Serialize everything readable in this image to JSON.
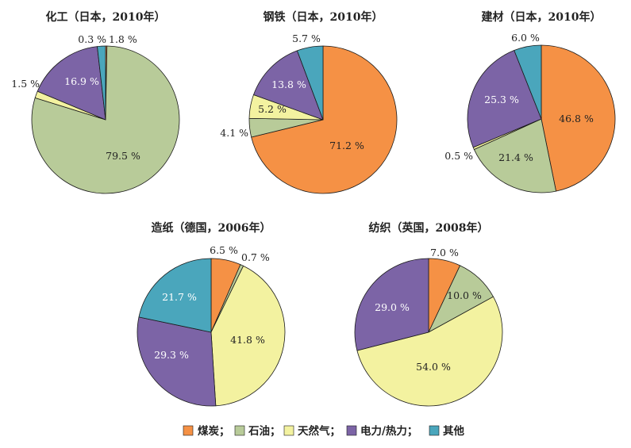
{
  "colors": {
    "coal": "#F59145",
    "oil": "#B8CB99",
    "gas": "#F3F2A0",
    "power_heat": "#7C64A6",
    "other": "#4AA6BC",
    "stroke": "#1a1a1a"
  },
  "legend": {
    "items": [
      {
        "key": "coal",
        "label": "煤炭；"
      },
      {
        "key": "oil",
        "label": "石油；"
      },
      {
        "key": "gas",
        "label": "天然气；"
      },
      {
        "key": "power_heat",
        "label": "电力/热力；"
      },
      {
        "key": "other",
        "label": "其他"
      }
    ]
  },
  "chart_data": [
    {
      "type": "pie",
      "title": "化工（日本，2010年）",
      "slices": [
        {
          "key": "coal",
          "value": 0.3,
          "label": "0.3 %"
        },
        {
          "key": "oil",
          "value": 79.5,
          "label": "79.5 %"
        },
        {
          "key": "gas",
          "value": 1.5,
          "label": "1.5 %"
        },
        {
          "key": "power_heat",
          "value": 16.9,
          "label": "16.9 %"
        },
        {
          "key": "other",
          "value": 1.8,
          "label": "1.8 %"
        }
      ]
    },
    {
      "type": "pie",
      "title": "钢铁（日本，2010年）",
      "slices": [
        {
          "key": "coal",
          "value": 71.2,
          "label": "71.2 %"
        },
        {
          "key": "oil",
          "value": 4.1,
          "label": "4.1 %"
        },
        {
          "key": "gas",
          "value": 5.2,
          "label": "5.2 %"
        },
        {
          "key": "power_heat",
          "value": 13.8,
          "label": "13.8 %"
        },
        {
          "key": "other",
          "value": 5.7,
          "label": "5.7 %"
        }
      ]
    },
    {
      "type": "pie",
      "title": "建材（日本，2010年）",
      "slices": [
        {
          "key": "coal",
          "value": 46.8,
          "label": "46.8 %"
        },
        {
          "key": "oil",
          "value": 21.4,
          "label": "21.4 %"
        },
        {
          "key": "gas",
          "value": 0.5,
          "label": "0.5 %"
        },
        {
          "key": "power_heat",
          "value": 25.3,
          "label": "25.3 %"
        },
        {
          "key": "other",
          "value": 6.0,
          "label": "6.0 %"
        }
      ]
    },
    {
      "type": "pie",
      "title": "造纸（德国，2006年）",
      "slices": [
        {
          "key": "coal",
          "value": 6.5,
          "label": "6.5 %"
        },
        {
          "key": "oil",
          "value": 0.7,
          "label": "0.7 %"
        },
        {
          "key": "gas",
          "value": 41.8,
          "label": "41.8 %"
        },
        {
          "key": "power_heat",
          "value": 29.3,
          "label": "29.3 %"
        },
        {
          "key": "other",
          "value": 21.7,
          "label": "21.7 %"
        }
      ]
    },
    {
      "type": "pie",
      "title": "纺织（英国，2008年）",
      "slices": [
        {
          "key": "coal",
          "value": 7.0,
          "label": "7.0 %"
        },
        {
          "key": "oil",
          "value": 10.0,
          "label": "10.0 %"
        },
        {
          "key": "gas",
          "value": 54.0,
          "label": "54.0 %"
        },
        {
          "key": "power_heat",
          "value": 29.0,
          "label": "29.0 %"
        }
      ]
    }
  ]
}
